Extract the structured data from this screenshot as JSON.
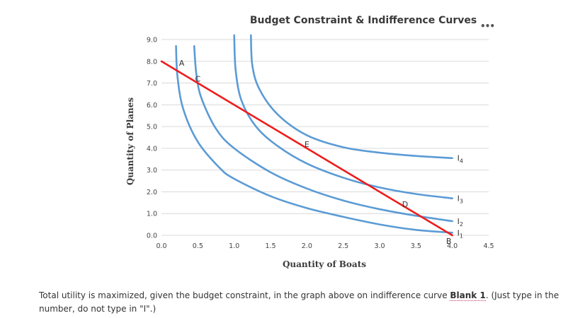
{
  "chart_data": {
    "type": "line",
    "title": "Budget Constraint & Indifference Curves",
    "xlabel": "Quantity of Boats",
    "ylabel": "Quantity of Planes",
    "xlim": [
      0,
      4.5
    ],
    "ylim": [
      0,
      9
    ],
    "x_ticks": [
      "0.0",
      "0.5",
      "1.0",
      "1.5",
      "2.0",
      "2.5",
      "3.0",
      "3.5",
      "4.0",
      "4.5"
    ],
    "y_ticks": [
      "0.0",
      "1.0",
      "2.0",
      "3.0",
      "4.0",
      "5.0",
      "6.0",
      "7.0",
      "8.0",
      "9.0"
    ],
    "grid": "horizontal",
    "series": [
      {
        "name": "budget",
        "color": "#ee1c1c",
        "x": [
          0,
          4.0
        ],
        "y": [
          8.0,
          0
        ]
      },
      {
        "name": "I1",
        "color": "#5b9bd5",
        "label": "I",
        "sub": "1",
        "x": [
          0.2,
          0.22,
          0.3,
          0.5,
          0.8,
          1.0,
          1.5,
          2.0,
          2.5,
          3.0,
          3.5,
          4.0
        ],
        "y": [
          8.7,
          7.3,
          5.8,
          4.3,
          3.1,
          2.6,
          1.8,
          1.25,
          0.85,
          0.5,
          0.25,
          0.12
        ]
      },
      {
        "name": "I2",
        "color": "#5b9bd5",
        "label": "I",
        "sub": "2",
        "x": [
          0.45,
          0.48,
          0.55,
          0.75,
          1.0,
          1.5,
          2.0,
          2.5,
          3.0,
          3.5,
          4.0
        ],
        "y": [
          8.7,
          7.4,
          6.3,
          4.9,
          4.0,
          2.9,
          2.15,
          1.6,
          1.2,
          0.9,
          0.65
        ]
      },
      {
        "name": "I3",
        "color": "#5b9bd5",
        "label": "I",
        "sub": "3",
        "x": [
          1.0,
          1.02,
          1.1,
          1.3,
          1.6,
          2.0,
          2.5,
          3.0,
          3.5,
          4.0
        ],
        "y": [
          9.2,
          7.6,
          6.2,
          5.0,
          4.1,
          3.3,
          2.65,
          2.2,
          1.9,
          1.7
        ]
      },
      {
        "name": "I4",
        "color": "#5b9bd5",
        "label": "I",
        "sub": "4",
        "x": [
          1.23,
          1.25,
          1.35,
          1.6,
          2.0,
          2.5,
          3.0,
          3.5,
          4.0
        ],
        "y": [
          9.2,
          7.8,
          6.7,
          5.55,
          4.6,
          4.05,
          3.8,
          3.65,
          3.55
        ]
      }
    ],
    "points": [
      {
        "label": "A",
        "x": 0.2,
        "y": 7.6
      },
      {
        "label": "C",
        "x": 0.5,
        "y": 7.0
      },
      {
        "label": "E",
        "x": 2.0,
        "y": 4.0
      },
      {
        "label": "D",
        "x": 3.35,
        "y": 1.3
      },
      {
        "label": "B",
        "x": 4.0,
        "y": 0
      }
    ]
  },
  "question": {
    "before": "Total utility is maximized, given the budget constraint, in the graph above on indifference curve ",
    "blank": "Blank 1",
    "after": ". (Just type in the number, do not type in \"I\".)"
  },
  "menu_dots": "•••"
}
